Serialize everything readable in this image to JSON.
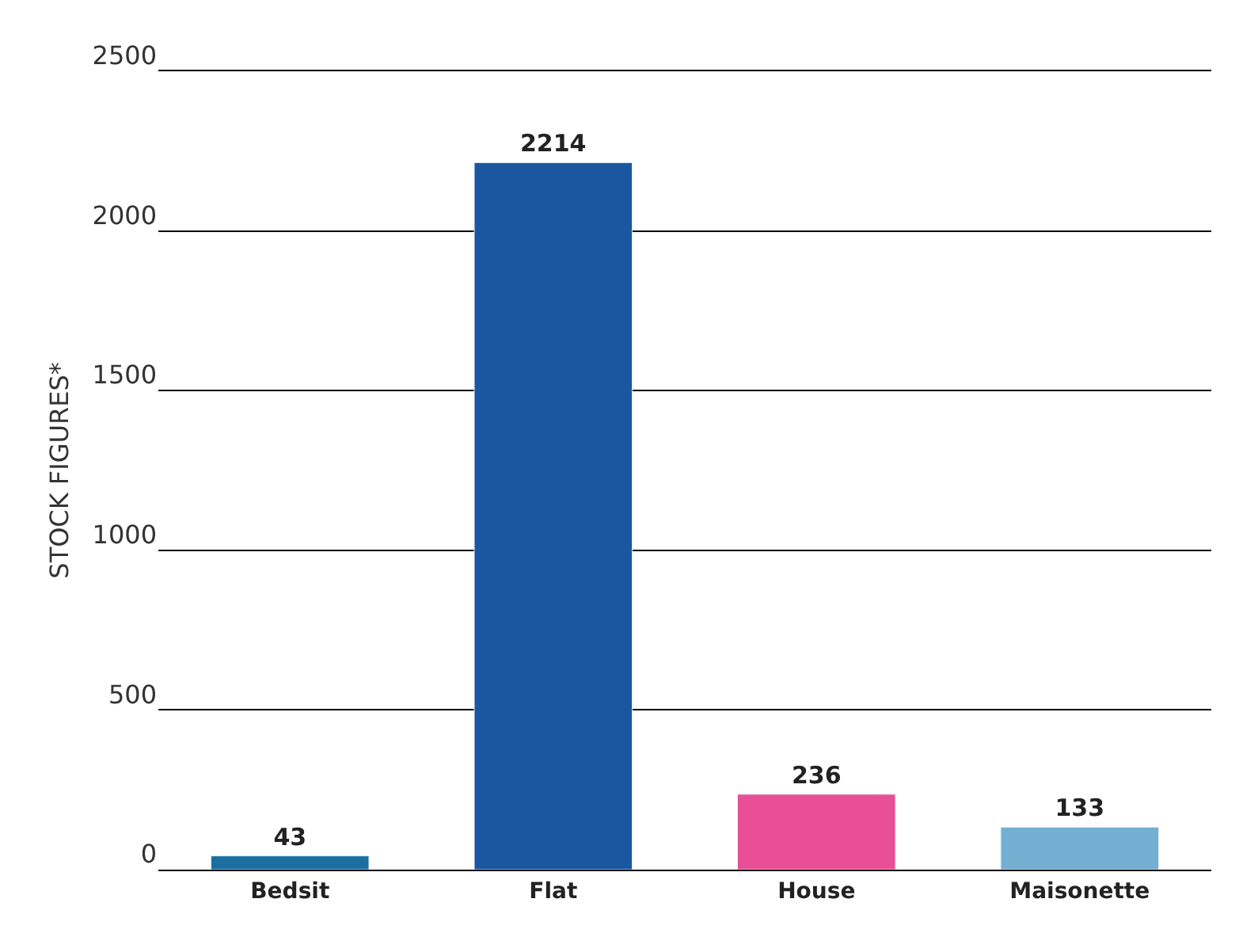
{
  "chart_data": {
    "type": "bar",
    "ylabel": "STOCK FIGURES*",
    "categories": [
      "Bedsit",
      "Flat",
      "House",
      "Maisonette"
    ],
    "values": [
      43,
      2214,
      236,
      133
    ],
    "colors": [
      "#1a6ea0",
      "#1b56a0",
      "#e84f97",
      "#74aed0"
    ],
    "ylim": [
      0,
      2500
    ],
    "yticks": [
      0,
      500,
      1000,
      1500,
      2000,
      2500
    ],
    "grid": "y",
    "data_labels": true,
    "legend": false
  }
}
